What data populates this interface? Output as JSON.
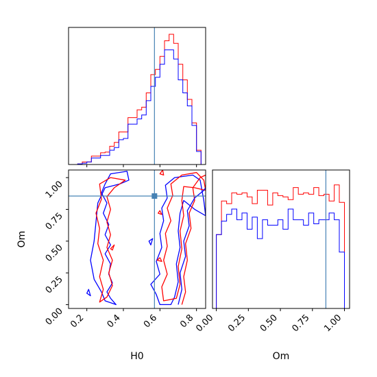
{
  "chart_data": {
    "type": "corner",
    "parameters": [
      "H0",
      "Om"
    ],
    "truths": {
      "H0": 0.57,
      "Om": 0.855
    },
    "colors": {
      "red": "#ff0000",
      "blue": "#0000ff",
      "truth": "#4682b4"
    },
    "hist_H0": {
      "xlim": [
        0.1,
        0.85
      ],
      "x_ticks": [
        0.2,
        0.4,
        0.6,
        0.8
      ],
      "edges": [
        0.15,
        0.175,
        0.2,
        0.225,
        0.25,
        0.275,
        0.3,
        0.325,
        0.35,
        0.375,
        0.4,
        0.425,
        0.45,
        0.475,
        0.5,
        0.525,
        0.55,
        0.575,
        0.6,
        0.625,
        0.65,
        0.675,
        0.7,
        0.725,
        0.75,
        0.775,
        0.8,
        0.825
      ],
      "series": [
        {
          "color": "red",
          "values": [
            0.005,
            0.02,
            0.02,
            0.065,
            0.065,
            0.09,
            0.095,
            0.14,
            0.17,
            0.25,
            0.25,
            0.36,
            0.36,
            0.42,
            0.44,
            0.55,
            0.69,
            0.73,
            0.83,
            0.95,
            1.0,
            0.93,
            0.77,
            0.65,
            0.5,
            0.32,
            0.11
          ]
        },
        {
          "color": "blue",
          "values": [
            0.005,
            0.01,
            0.02,
            0.05,
            0.05,
            0.07,
            0.07,
            0.11,
            0.13,
            0.19,
            0.2,
            0.31,
            0.31,
            0.35,
            0.38,
            0.49,
            0.6,
            0.67,
            0.77,
            0.88,
            0.88,
            0.81,
            0.65,
            0.55,
            0.45,
            0.3,
            0.1
          ]
        }
      ]
    },
    "hist_Om": {
      "xlim": [
        -0.03,
        1.04
      ],
      "x_ticks": [
        0.0,
        0.25,
        0.5,
        0.75,
        1.0
      ],
      "x_tick_labels": [
        "0.00",
        "0.25",
        "0.50",
        "0.75",
        "1.00"
      ],
      "xlabel": "Om",
      "edges": [
        0.0,
        0.04,
        0.08,
        0.12,
        0.16,
        0.2,
        0.24,
        0.28,
        0.32,
        0.36,
        0.4,
        0.44,
        0.48,
        0.52,
        0.56,
        0.6,
        0.64,
        0.68,
        0.72,
        0.76,
        0.8,
        0.84,
        0.88,
        0.92,
        0.96,
        1.0
      ],
      "series": [
        {
          "color": "red",
          "values": [
            0.55,
            0.8,
            0.78,
            0.86,
            0.85,
            0.86,
            0.83,
            0.78,
            0.88,
            0.88,
            0.77,
            0.86,
            0.84,
            0.83,
            0.81,
            0.9,
            0.85,
            0.86,
            0.85,
            0.9,
            0.84,
            0.85,
            0.8,
            0.92,
            0.79
          ]
        },
        {
          "color": "blue",
          "values": [
            0.55,
            0.65,
            0.7,
            0.74,
            0.66,
            0.71,
            0.59,
            0.68,
            0.52,
            0.66,
            0.62,
            0.62,
            0.66,
            0.59,
            0.74,
            0.66,
            0.66,
            0.62,
            0.71,
            0.63,
            0.66,
            0.66,
            0.71,
            0.66,
            0.42
          ]
        }
      ]
    },
    "contour": {
      "xlim": [
        0.1,
        0.85
      ],
      "ylim": [
        -0.03,
        1.06
      ],
      "x_ticks": [
        0.2,
        0.4,
        0.6,
        0.8
      ],
      "x_tick_labels": [
        "0.2",
        "0.4",
        "0.6",
        "0.8"
      ],
      "y_ticks": [
        0.0,
        0.25,
        0.5,
        0.75,
        1.0
      ],
      "y_tick_labels": [
        "0.00",
        "0.25",
        "0.50",
        "0.75",
        "1.00"
      ],
      "xlabel": "H0",
      "ylabel": "Om",
      "paths": [
        {
          "color": "blue",
          "points": [
            [
              0.36,
              0.0
            ],
            [
              0.33,
              0.05
            ],
            [
              0.31,
              0.1
            ],
            [
              0.34,
              0.17
            ],
            [
              0.32,
              0.24
            ],
            [
              0.33,
              0.32
            ],
            [
              0.3,
              0.4
            ],
            [
              0.33,
              0.47
            ],
            [
              0.3,
              0.55
            ],
            [
              0.32,
              0.63
            ],
            [
              0.29,
              0.72
            ],
            [
              0.31,
              0.8
            ],
            [
              0.28,
              0.88
            ],
            [
              0.3,
              0.95
            ],
            [
              0.33,
              1.03
            ],
            [
              0.42,
              1.05
            ],
            [
              0.43,
              0.98
            ],
            [
              0.38,
              0.95
            ],
            [
              0.3,
              0.92
            ],
            [
              0.26,
              0.8
            ],
            [
              0.25,
              0.65
            ],
            [
              0.24,
              0.5
            ],
            [
              0.22,
              0.35
            ],
            [
              0.24,
              0.2
            ],
            [
              0.28,
              0.1
            ],
            [
              0.3,
              0.03
            ],
            [
              0.36,
              0.0
            ]
          ],
          "closed": true
        },
        {
          "color": "red",
          "points": [
            [
              0.27,
              0.02
            ],
            [
              0.29,
              0.12
            ],
            [
              0.27,
              0.22
            ],
            [
              0.29,
              0.35
            ],
            [
              0.26,
              0.48
            ],
            [
              0.27,
              0.6
            ],
            [
              0.25,
              0.72
            ],
            [
              0.28,
              0.83
            ],
            [
              0.27,
              0.95
            ],
            [
              0.33,
              1.0
            ],
            [
              0.41,
              0.98
            ],
            [
              0.35,
              0.92
            ],
            [
              0.31,
              0.85
            ],
            [
              0.33,
              0.75
            ],
            [
              0.31,
              0.65
            ],
            [
              0.33,
              0.55
            ],
            [
              0.31,
              0.45
            ],
            [
              0.34,
              0.35
            ],
            [
              0.32,
              0.25
            ],
            [
              0.34,
              0.15
            ],
            [
              0.31,
              0.06
            ],
            [
              0.27,
              0.02
            ]
          ],
          "closed": true
        },
        {
          "color": "blue",
          "points": [
            [
              0.2,
              0.09
            ],
            [
              0.21,
              0.12
            ],
            [
              0.22,
              0.07
            ],
            [
              0.2,
              0.09
            ]
          ],
          "closed": true
        },
        {
          "color": "red",
          "points": [
            [
              0.33,
              0.44
            ],
            [
              0.35,
              0.47
            ],
            [
              0.34,
              0.43
            ],
            [
              0.33,
              0.44
            ]
          ],
          "closed": true
        },
        {
          "color": "blue",
          "points": [
            [
              0.54,
              0.5
            ],
            [
              0.56,
              0.52
            ],
            [
              0.55,
              0.47
            ],
            [
              0.54,
              0.5
            ]
          ],
          "closed": true
        },
        {
          "color": "blue",
          "points": [
            [
              0.6,
              0.0
            ],
            [
              0.58,
              0.08
            ],
            [
              0.55,
              0.16
            ],
            [
              0.6,
              0.24
            ],
            [
              0.58,
              0.34
            ],
            [
              0.61,
              0.45
            ],
            [
              0.6,
              0.56
            ],
            [
              0.62,
              0.66
            ],
            [
              0.61,
              0.76
            ],
            [
              0.64,
              0.84
            ],
            [
              0.63,
              0.94
            ],
            [
              0.68,
              1.0
            ],
            [
              0.78,
              1.02
            ],
            [
              0.82,
              0.98
            ],
            [
              0.84,
              0.82
            ],
            [
              0.85,
              0.7
            ],
            [
              0.79,
              0.75
            ],
            [
              0.73,
              0.82
            ],
            [
              0.71,
              0.72
            ],
            [
              0.7,
              0.58
            ],
            [
              0.71,
              0.45
            ],
            [
              0.69,
              0.32
            ],
            [
              0.7,
              0.18
            ],
            [
              0.68,
              0.06
            ],
            [
              0.66,
              0.0
            ],
            [
              0.6,
              0.0
            ]
          ],
          "closed": true
        },
        {
          "color": "red",
          "points": [
            [
              0.62,
              0.03
            ],
            [
              0.61,
              0.14
            ],
            [
              0.64,
              0.24
            ],
            [
              0.62,
              0.35
            ],
            [
              0.64,
              0.46
            ],
            [
              0.63,
              0.56
            ],
            [
              0.66,
              0.66
            ],
            [
              0.64,
              0.76
            ],
            [
              0.67,
              0.86
            ],
            [
              0.66,
              0.95
            ],
            [
              0.72,
              1.02
            ],
            [
              0.8,
              1.04
            ],
            [
              0.84,
              0.98
            ],
            [
              0.85,
              0.9
            ],
            [
              0.79,
              0.92
            ],
            [
              0.73,
              0.93
            ],
            [
              0.72,
              0.82
            ],
            [
              0.73,
              0.7
            ],
            [
              0.71,
              0.58
            ],
            [
              0.72,
              0.44
            ],
            [
              0.7,
              0.3
            ],
            [
              0.71,
              0.16
            ],
            [
              0.69,
              0.05
            ],
            [
              0.62,
              0.03
            ]
          ],
          "closed": true
        },
        {
          "color": "red",
          "points": [
            [
              0.72,
              0.0
            ],
            [
              0.74,
              0.1
            ],
            [
              0.73,
              0.22
            ],
            [
              0.75,
              0.35
            ],
            [
              0.74,
              0.48
            ],
            [
              0.77,
              0.6
            ],
            [
              0.76,
              0.72
            ],
            [
              0.79,
              0.82
            ],
            [
              0.78,
              0.92
            ],
            [
              0.82,
              1.0
            ],
            [
              0.85,
              1.02
            ]
          ],
          "closed": false
        },
        {
          "color": "blue",
          "points": [
            [
              0.7,
              0.0
            ],
            [
              0.72,
              0.12
            ],
            [
              0.71,
              0.25
            ],
            [
              0.74,
              0.38
            ],
            [
              0.73,
              0.5
            ],
            [
              0.76,
              0.62
            ],
            [
              0.75,
              0.74
            ],
            [
              0.79,
              0.84
            ],
            [
              0.84,
              0.9
            ],
            [
              0.85,
              0.92
            ]
          ],
          "closed": false
        },
        {
          "color": "red",
          "points": [
            [
              0.6,
              1.03
            ],
            [
              0.615,
              1.06
            ],
            [
              0.62,
              1.02
            ],
            [
              0.6,
              1.03
            ]
          ],
          "closed": true
        },
        {
          "color": "red",
          "points": [
            [
              0.59,
              0.72
            ],
            [
              0.6,
              0.74
            ],
            [
              0.61,
              0.71
            ],
            [
              0.59,
              0.72
            ]
          ],
          "closed": true
        },
        {
          "color": "red",
          "points": [
            [
              0.585,
              0.35
            ],
            [
              0.6,
              0.37
            ],
            [
              0.61,
              0.34
            ],
            [
              0.585,
              0.35
            ]
          ],
          "closed": true
        }
      ]
    }
  }
}
